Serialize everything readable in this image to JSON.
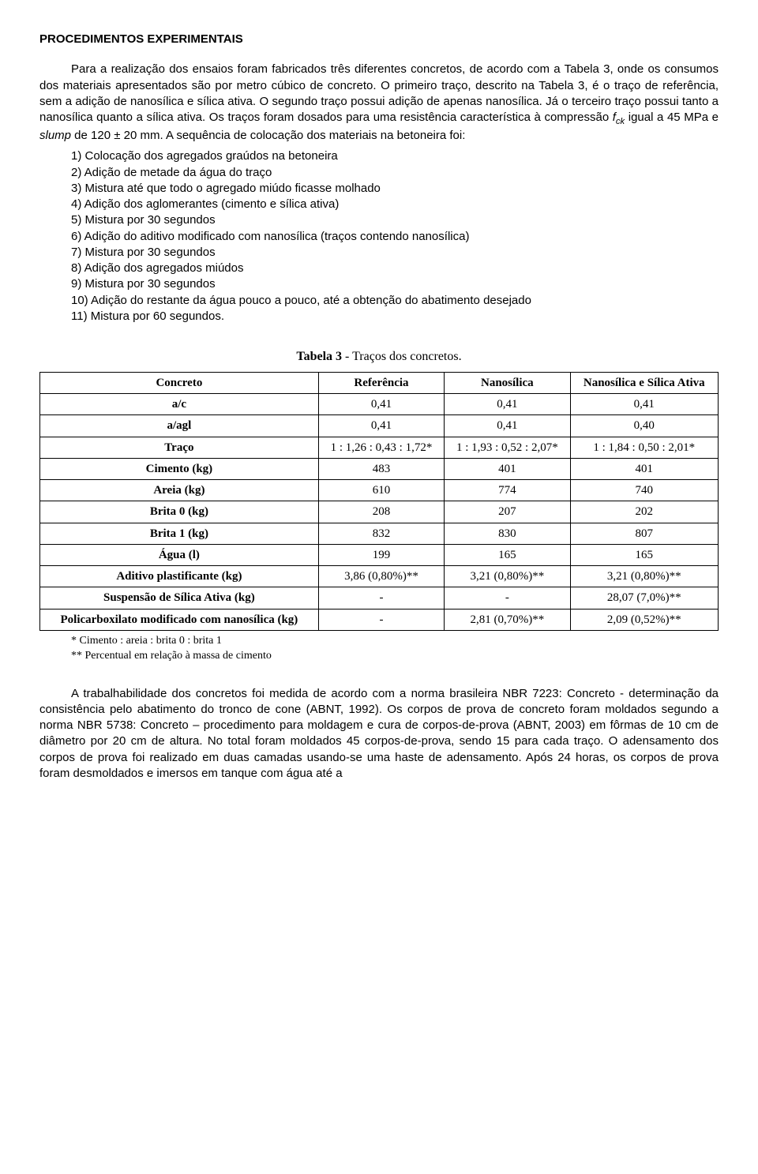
{
  "title": "PROCEDIMENTOS EXPERIMENTAIS",
  "para1": "Para a realização dos ensaios foram fabricados três diferentes concretos, de acordo com a Tabela 3, onde os consumos dos materiais apresentados são por metro cúbico de concreto. O primeiro traço, descrito na Tabela 3, é o traço de referência, sem a adição de nanosílica e sílica ativa. O segundo traço possui adição de apenas nanosílica. Já o terceiro traço possui tanto a nanosílica quanto a sílica ativa. Os traços foram dosados para uma resistência característica à compressão ",
  "fck_label": "f",
  "fck_sub": "ck",
  "para1b": " igual a 45 MPa e ",
  "slump": "slump",
  "para1c": " de 120 ± 20 mm. A sequência de colocação dos materiais na betoneira foi:",
  "steps": [
    "1) Colocação dos agregados graúdos na betoneira",
    "2) Adição de metade da água do traço",
    "3) Mistura até que todo o agregado miúdo ficasse molhado",
    "4) Adição dos aglomerantes (cimento e sílica ativa)",
    "5) Mistura por 30 segundos",
    "6) Adição do aditivo modificado com nanosílica (traços contendo nanosílica)",
    "7) Mistura por 30 segundos",
    "8) Adição dos agregados miúdos",
    "9) Mistura por 30 segundos",
    "10) Adição do restante da água pouco a pouco, até a obtenção do abatimento desejado",
    "11) Mistura por 60 segundos."
  ],
  "table": {
    "caption_bold": "Tabela 3",
    "caption_rest": " - Traços dos concretos.",
    "headers": [
      "Concreto",
      "Referência",
      "Nanosílica",
      "Nanosílica e Sílica Ativa"
    ],
    "rows": [
      {
        "label": "a/c",
        "vals": [
          "0,41",
          "0,41",
          "0,41"
        ]
      },
      {
        "label": "a/agl",
        "vals": [
          "0,41",
          "0,41",
          "0,40"
        ]
      },
      {
        "label": "Traço",
        "vals": [
          "1 : 1,26 : 0,43 : 1,72*",
          "1 : 1,93 : 0,52 : 2,07*",
          "1 : 1,84 : 0,50 : 2,01*"
        ]
      },
      {
        "label": "Cimento (kg)",
        "vals": [
          "483",
          "401",
          "401"
        ]
      },
      {
        "label": "Areia (kg)",
        "vals": [
          "610",
          "774",
          "740"
        ]
      },
      {
        "label": "Brita 0 (kg)",
        "vals": [
          "208",
          "207",
          "202"
        ]
      },
      {
        "label": "Brita 1 (kg)",
        "vals": [
          "832",
          "830",
          "807"
        ]
      },
      {
        "label": "Água (l)",
        "vals": [
          "199",
          "165",
          "165"
        ]
      },
      {
        "label": "Aditivo plastificante (kg)",
        "vals": [
          "3,86 (0,80%)**",
          "3,21 (0,80%)**",
          "3,21 (0,80%)**"
        ]
      },
      {
        "label": "Suspensão de Sílica Ativa (kg)",
        "vals": [
          "-",
          "-",
          "28,07 (7,0%)**"
        ]
      },
      {
        "label": "Policarboxilato modificado com nanosílica (kg)",
        "vals": [
          "-",
          "2,81 (0,70%)**",
          "2,09 (0,52%)**"
        ]
      }
    ],
    "footnote1": "* Cimento : areia : brita 0 : brita 1",
    "footnote2": "** Percentual em relação à massa de cimento"
  },
  "para2": "A trabalhabilidade dos concretos foi medida de acordo com a norma brasileira NBR 7223: Concreto - determinação da consistência pelo abatimento do tronco de cone (ABNT, 1992). Os corpos de prova de concreto foram moldados segundo a norma NBR 5738: Concreto – procedimento para moldagem e cura de corpos-de-prova (ABNT, 2003) em fôrmas de 10 cm de diâmetro por 20 cm de altura. No total foram moldados 45 corpos-de-prova, sendo 15 para cada traço.  O adensamento dos corpos de prova foi realizado em duas camadas usando-se uma haste de adensamento. Após 24 horas, os corpos de prova foram desmoldados e imersos em tanque com água até a"
}
